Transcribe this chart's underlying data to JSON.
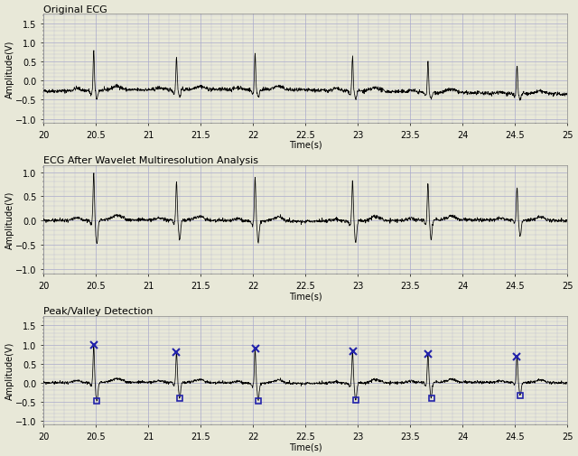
{
  "title1": "Original ECG",
  "title2": "ECG After Wavelet Multiresolution Analysis",
  "title3": "Peak/Valley Detection",
  "xlabel": "Time(s)",
  "ylabel": "Amplitude(V)",
  "xlim": [
    20,
    25
  ],
  "ylim1": [
    -1.1,
    1.75
  ],
  "ylim2": [
    -1.1,
    1.15
  ],
  "ylim3": [
    -1.1,
    1.75
  ],
  "yticks1": [
    -1.0,
    -0.5,
    0.0,
    0.5,
    1.0,
    1.5
  ],
  "yticks2": [
    -1.0,
    -0.5,
    0.0,
    0.5,
    1.0
  ],
  "yticks3": [
    -1.0,
    -0.5,
    0.0,
    0.5,
    1.0,
    1.5
  ],
  "xticks": [
    20,
    20.5,
    21,
    21.5,
    22,
    22.5,
    23,
    23.5,
    24,
    24.5,
    25
  ],
  "bg_color": "#e8e8d8",
  "grid_color": "#aaaacc",
  "line_color": "#000000",
  "peak_color": "#2222aa",
  "valley_color": "#2222aa",
  "beat_centers": [
    20.48,
    21.27,
    22.02,
    22.95,
    23.67,
    24.52
  ],
  "beat_amplitudes": [
    1.05,
    0.87,
    0.95,
    0.93,
    0.83,
    0.73
  ],
  "valley_offsets": [
    0.04,
    0.04,
    0.05,
    0.04,
    0.04,
    0.05
  ],
  "seed": 42
}
